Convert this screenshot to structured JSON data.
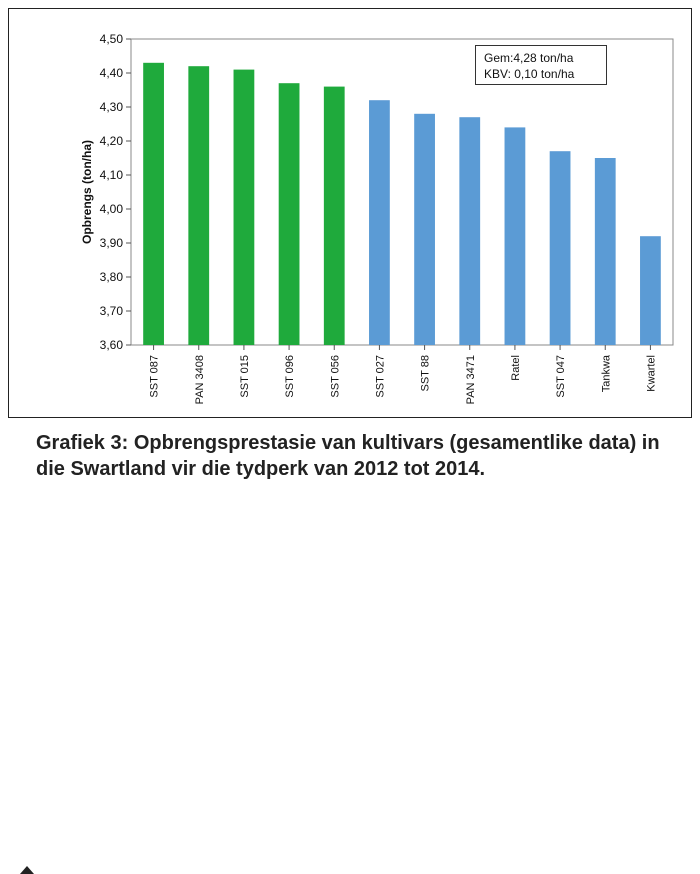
{
  "chart_data": {
    "type": "bar",
    "title": "",
    "xlabel": "",
    "ylabel": "Opbrengs (ton/ha)",
    "ylim": [
      3.6,
      4.5
    ],
    "yticks": [
      "3,60",
      "3,70",
      "3,80",
      "3,90",
      "4,00",
      "4,10",
      "4,20",
      "4,30",
      "4,40",
      "4,50"
    ],
    "categories": [
      "SST 087",
      "PAN 3408",
      "SST 015",
      "SST 096",
      "SST 056",
      "SST 027",
      "SST 88",
      "PAN 3471",
      "Ratel",
      "SST 047",
      "Tankwa",
      "Kwartel"
    ],
    "values": [
      4.43,
      4.42,
      4.41,
      4.37,
      4.36,
      4.32,
      4.28,
      4.27,
      4.24,
      4.17,
      4.15,
      3.92
    ],
    "bar_colors": [
      "#1faa3c",
      "#1faa3c",
      "#1faa3c",
      "#1faa3c",
      "#1faa3c",
      "#5b9bd5",
      "#5b9bd5",
      "#5b9bd5",
      "#5b9bd5",
      "#5b9bd5",
      "#5b9bd5",
      "#5b9bd5"
    ],
    "grid": false,
    "legend": "none"
  },
  "stats": {
    "line1": "Gem:4,28 ton/ha",
    "line2": "KBV: 0,10 ton/ha"
  },
  "caption": "Grafiek 3: Opbrengsprestasie van kultivars (gesamentlike data) in die Swartland vir die tydperk van 2012 tot 2014."
}
